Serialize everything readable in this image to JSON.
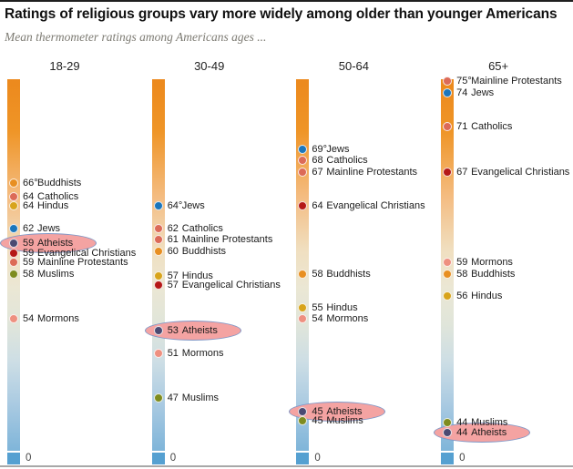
{
  "title": "Ratings of religious groups vary more widely among older than younger Americans",
  "subtitle": "Mean thermometer ratings among Americans ages ...",
  "axis": {
    "zero_label": "0"
  },
  "colors": {
    "groups": {
      "Buddhists": "#e88f21",
      "Catholics": "#dc6a57",
      "Hindus": "#d8a41b",
      "Jews": "#1b76bb",
      "Atheists": "#4b4a72",
      "Evangelical Christians": "#b51817",
      "Mainline Protestants": "#dc6a57",
      "Muslims": "#7e8c1f",
      "Mormons": "#ee9080"
    },
    "highlight_fill": "#f4a3a2",
    "highlight_stroke": "#7e97c7",
    "bulb": "#55a0d1"
  },
  "chart_data": {
    "type": "scatter",
    "subtype": "thermometer-dot-columns",
    "scale": {
      "min": 0,
      "max": 100,
      "unit": "thermometer degrees"
    },
    "highlight_group": "Atheists",
    "columns": [
      {
        "age": "18-29",
        "items": [
          {
            "group": "Buddhists",
            "value": 66,
            "label": "66°"
          },
          {
            "group": "Catholics",
            "value": 64,
            "label": "64"
          },
          {
            "group": "Hindus",
            "value": 64,
            "label": "64"
          },
          {
            "group": "Jews",
            "value": 62,
            "label": "62"
          },
          {
            "group": "Atheists",
            "value": 59,
            "label": "59",
            "highlight": true
          },
          {
            "group": "Evangelical Christians",
            "value": 59,
            "label": "59"
          },
          {
            "group": "Mainline Protestants",
            "value": 59,
            "label": "59"
          },
          {
            "group": "Muslims",
            "value": 58,
            "label": "58"
          },
          {
            "group": "Mormons",
            "value": 54,
            "label": "54"
          }
        ]
      },
      {
        "age": "30-49",
        "items": [
          {
            "group": "Jews",
            "value": 64,
            "label": "64°"
          },
          {
            "group": "Catholics",
            "value": 62,
            "label": "62"
          },
          {
            "group": "Mainline Protestants",
            "value": 61,
            "label": "61"
          },
          {
            "group": "Buddhists",
            "value": 60,
            "label": "60"
          },
          {
            "group": "Hindus",
            "value": 57,
            "label": "57"
          },
          {
            "group": "Evangelical Christians",
            "value": 57,
            "label": "57"
          },
          {
            "group": "Atheists",
            "value": 53,
            "label": "53",
            "highlight": true
          },
          {
            "group": "Mormons",
            "value": 51,
            "label": "51"
          },
          {
            "group": "Muslims",
            "value": 47,
            "label": "47"
          }
        ]
      },
      {
        "age": "50-64",
        "items": [
          {
            "group": "Jews",
            "value": 69,
            "label": "69°"
          },
          {
            "group": "Catholics",
            "value": 68,
            "label": "68"
          },
          {
            "group": "Mainline Protestants",
            "value": 67,
            "label": "67"
          },
          {
            "group": "Evangelical Christians",
            "value": 64,
            "label": "64"
          },
          {
            "group": "Buddhists",
            "value": 58,
            "label": "58"
          },
          {
            "group": "Hindus",
            "value": 55,
            "label": "55"
          },
          {
            "group": "Mormons",
            "value": 54,
            "label": "54"
          },
          {
            "group": "Atheists",
            "value": 45,
            "label": "45",
            "highlight": true
          },
          {
            "group": "Muslims",
            "value": 45,
            "label": "45"
          }
        ]
      },
      {
        "age": "65+",
        "items": [
          {
            "group": "Mainline Protestants",
            "value": 75,
            "label": "75°"
          },
          {
            "group": "Jews",
            "value": 74,
            "label": "74"
          },
          {
            "group": "Catholics",
            "value": 71,
            "label": "71"
          },
          {
            "group": "Evangelical Christians",
            "value": 67,
            "label": "67"
          },
          {
            "group": "Mormons",
            "value": 59,
            "label": "59"
          },
          {
            "group": "Buddhists",
            "value": 58,
            "label": "58"
          },
          {
            "group": "Hindus",
            "value": 56,
            "label": "56"
          },
          {
            "group": "Muslims",
            "value": 44,
            "label": "44"
          },
          {
            "group": "Atheists",
            "value": 44,
            "label": "44",
            "highlight": true
          }
        ]
      }
    ]
  }
}
